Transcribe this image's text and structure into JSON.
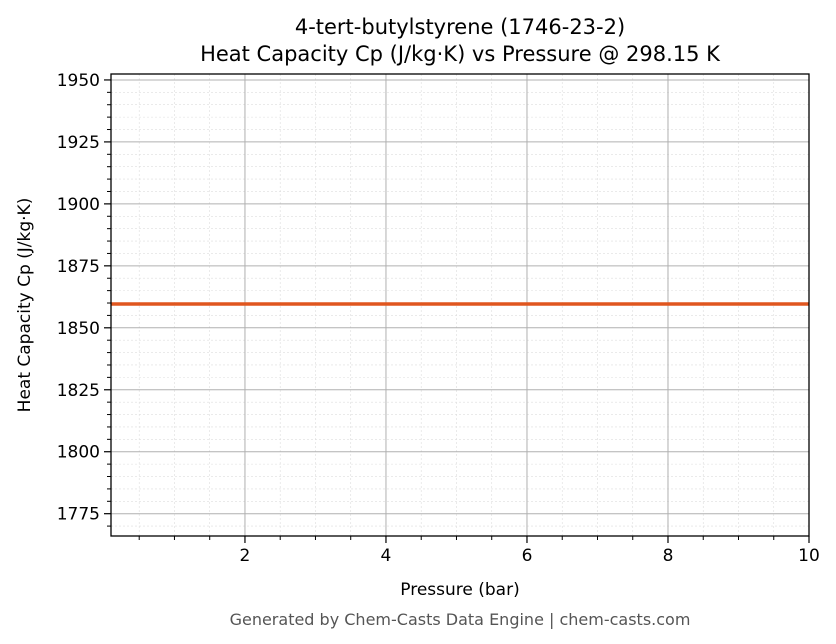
{
  "chart_data": {
    "type": "line",
    "title": "4-tert-butylstyrene (1746-23-2)",
    "subtitle": "Heat Capacity Cp (J/kg·K) vs Pressure @ 298.15 K",
    "xlabel": "Pressure (bar)",
    "ylabel": "Heat Capacity Cp (J/kg·K)",
    "xlim": [
      0.1,
      10
    ],
    "ylim": [
      1766,
      1952.4
    ],
    "xticks": [
      2,
      4,
      6,
      8,
      10
    ],
    "yticks": [
      1775,
      1800,
      1825,
      1850,
      1875,
      1900,
      1925,
      1950
    ],
    "grid": true,
    "series": [
      {
        "x": [
          0.1,
          10
        ],
        "y": [
          1859.6,
          1859.6
        ],
        "color": "#e0561f"
      }
    ]
  },
  "footer": "Generated by Chem-Casts Data Engine | chem-casts.com"
}
